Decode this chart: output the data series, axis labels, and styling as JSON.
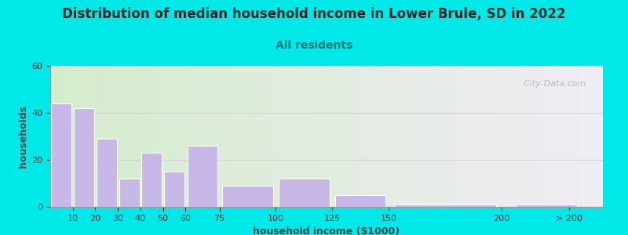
{
  "title": "Distribution of median household income in Lower Brule, SD in 2022",
  "subtitle": "All residents",
  "xlabel": "household income ($1000)",
  "ylabel": "households",
  "bar_labels": [
    "10",
    "20",
    "30",
    "40",
    "50",
    "60",
    "75",
    "100",
    "125",
    "150",
    "200",
    "> 200"
  ],
  "bar_heights": [
    44,
    42,
    29,
    12,
    23,
    15,
    26,
    9,
    12,
    5,
    1,
    1
  ],
  "bar_color": "#c8b8e8",
  "bar_edge_color": "#ffffff",
  "ylim": [
    0,
    60
  ],
  "yticks": [
    0,
    20,
    40,
    60
  ],
  "background_color": "#00e8e8",
  "plot_bg_color_left": "#d5edcc",
  "plot_bg_color_right": "#f0ecf5",
  "title_fontsize": 12,
  "subtitle_fontsize": 10,
  "axis_label_fontsize": 9,
  "tick_fontsize": 8,
  "watermark_text": "  City-Data.com",
  "subtitle_color": "#007575",
  "title_color": "#222222"
}
